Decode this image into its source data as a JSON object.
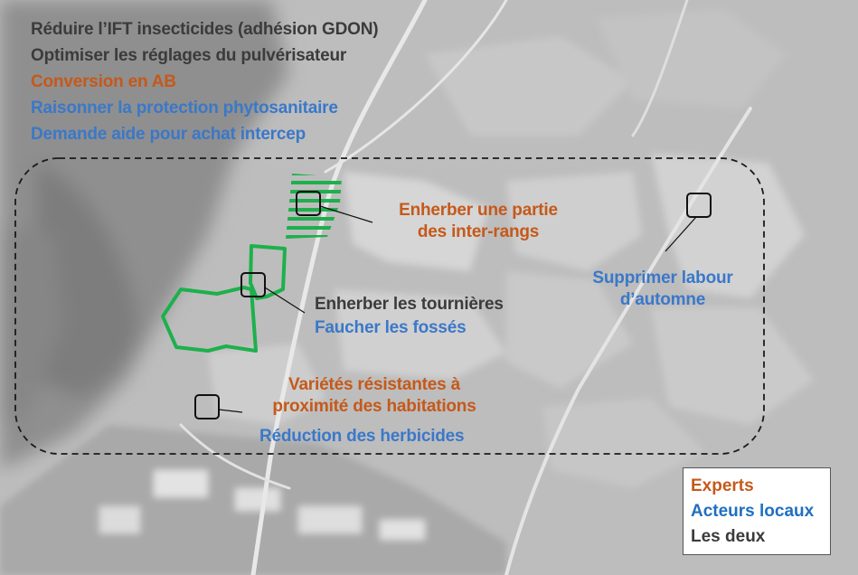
{
  "colors": {
    "experts": "#C5591A",
    "local_actors": "#3A78C9",
    "both": "#3b3b3b",
    "field_outline": "#1DB04C"
  },
  "goals": [
    {
      "text": "Réduire l’IFT insecticides (adhésion GDON)",
      "group": "both"
    },
    {
      "text": "Optimiser les réglages du pulvérisateur",
      "group": "both"
    },
    {
      "text": "Conversion en AB",
      "group": "experts"
    },
    {
      "text": "Raisonner la protection phytosanitaire",
      "group": "local_actors"
    },
    {
      "text": "Demande aide pour achat intercep",
      "group": "local_actors"
    }
  ],
  "annotations": {
    "enherber_partie": [
      "Enherber une partie",
      "des inter-rangs"
    ],
    "tournieres": "Enherber les tournières",
    "fosses": "Faucher les fossés",
    "varietes": [
      "Variétés résistantes à",
      "proximité des habitations"
    ],
    "herbicides": "Réduction des herbicides",
    "labour": [
      "Supprimer labour",
      "d’automne"
    ]
  },
  "legend": {
    "experts": "Experts",
    "local_actors": "Acteurs locaux",
    "both": "Les deux"
  }
}
